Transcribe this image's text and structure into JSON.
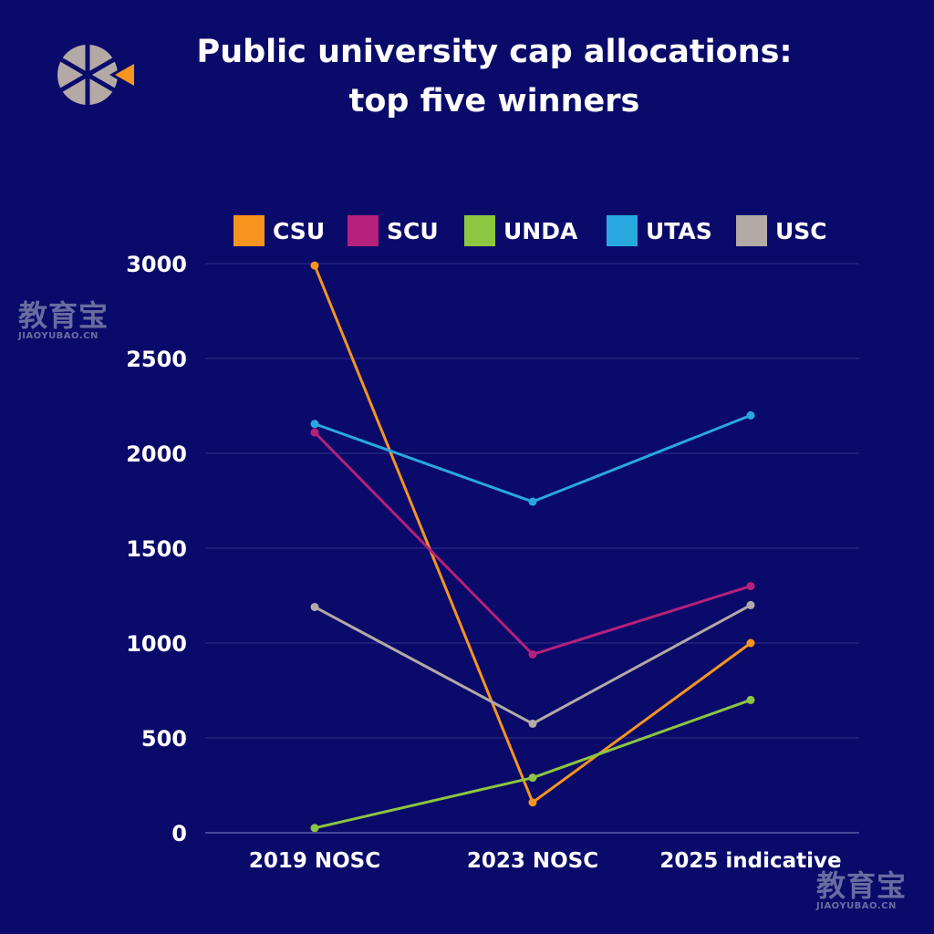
{
  "chart_data": {
    "type": "line",
    "title_lines": [
      "Public university cap allocations:",
      "top five winners"
    ],
    "categories": [
      "2019 NOSC",
      "2023 NOSC",
      "2025 indicative"
    ],
    "ylim": [
      0,
      3000
    ],
    "yticks": [
      0,
      500,
      1000,
      1500,
      2000,
      2500,
      3000
    ],
    "grid": true,
    "legend_position": "top",
    "series": [
      {
        "name": "CSU",
        "color": "#f7941d",
        "values": [
          2990,
          160,
          1000
        ]
      },
      {
        "name": "SCU",
        "color": "#b5207a",
        "values": [
          2110,
          940,
          1300
        ]
      },
      {
        "name": "UNDA",
        "color": "#8dc63f",
        "values": [
          25,
          290,
          700
        ]
      },
      {
        "name": "UTAS",
        "color": "#29a8e0",
        "values": [
          2155,
          1745,
          2200
        ]
      },
      {
        "name": "USC",
        "color": "#b3aaa6",
        "values": [
          1190,
          575,
          1200
        ]
      }
    ]
  },
  "watermark": {
    "cn": "教育宝",
    "en": "JIAOYUBAO.CN"
  },
  "logo": {
    "icon": "wheel-arrow-logo-icon"
  }
}
